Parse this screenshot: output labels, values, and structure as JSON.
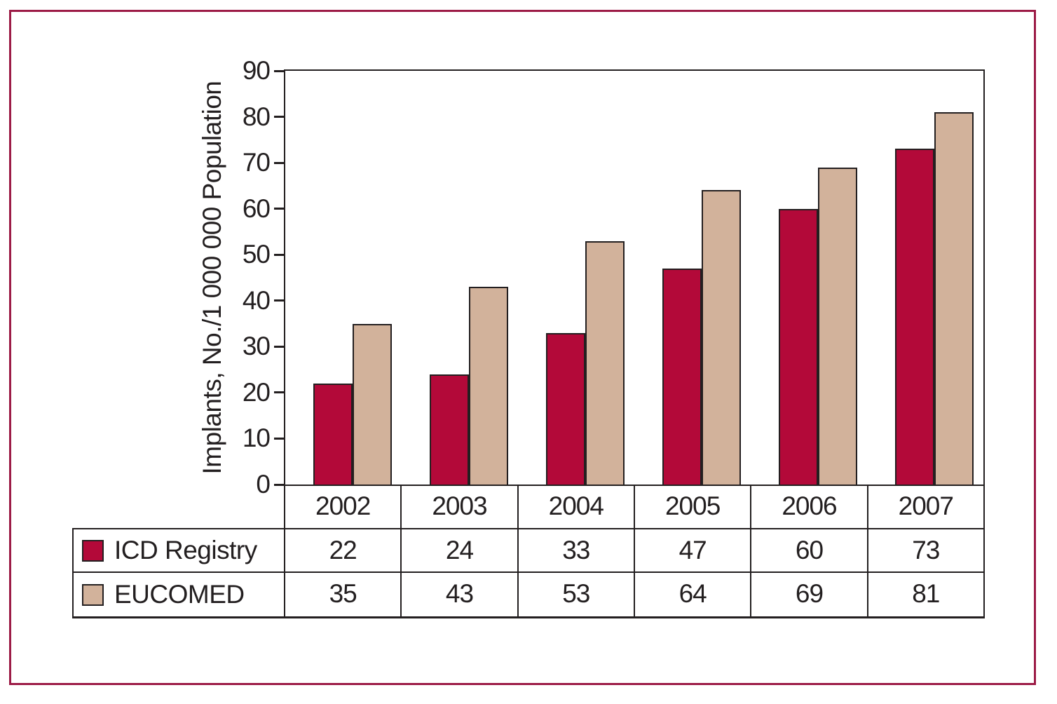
{
  "colors": {
    "frame": "#9c1b46",
    "line": "#231f20",
    "text": "#231f20",
    "background": "#ffffff"
  },
  "chart_data": {
    "type": "bar",
    "title": "",
    "xlabel": "",
    "ylabel": "Implants, No./1 000 000 Population",
    "ylim": [
      0,
      90
    ],
    "yticks": [
      0,
      10,
      20,
      30,
      40,
      50,
      60,
      70,
      80,
      90
    ],
    "grid": false,
    "legend_position": "table-below-left",
    "categories": [
      "2002",
      "2003",
      "2004",
      "2005",
      "2006",
      "2007"
    ],
    "series": [
      {
        "name": "ICD Registry",
        "color": "#b30939",
        "values": [
          22,
          24,
          33,
          47,
          60,
          73
        ]
      },
      {
        "name": "EUCOMED",
        "color": "#d2b29b",
        "values": [
          35,
          43,
          53,
          64,
          69,
          81
        ]
      }
    ]
  }
}
